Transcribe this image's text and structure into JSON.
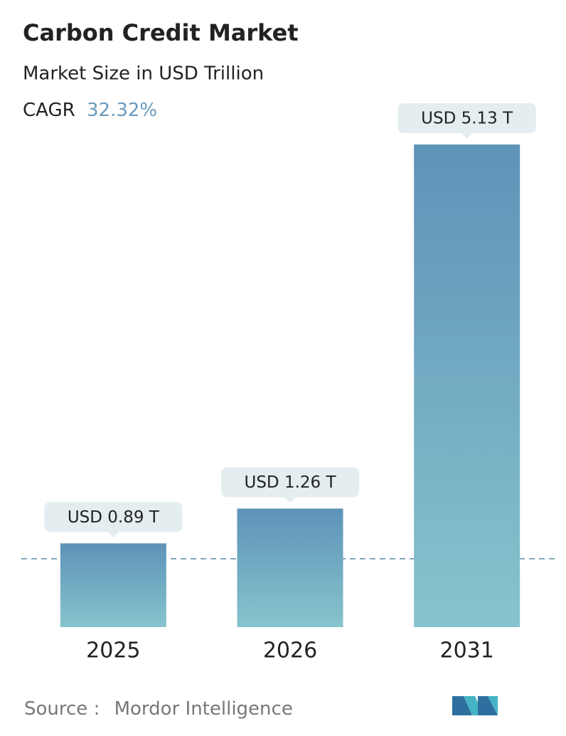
{
  "chart_data": {
    "type": "bar",
    "title": "Carbon Credit Market",
    "subtitle": "Market Size in USD Trillion",
    "cagr_label": "CAGR",
    "cagr": "32.32%",
    "categories": [
      "2025",
      "2026",
      "2031"
    ],
    "values": [
      0.89,
      1.26,
      5.13
    ],
    "value_labels": [
      "USD 0.89 T",
      "USD 1.26 T",
      "USD 5.13 T"
    ],
    "colors": [
      "#5e93b8",
      "#86c4cd"
    ],
    "source_label": "Source :",
    "source": "Mordor Intelligence"
  }
}
